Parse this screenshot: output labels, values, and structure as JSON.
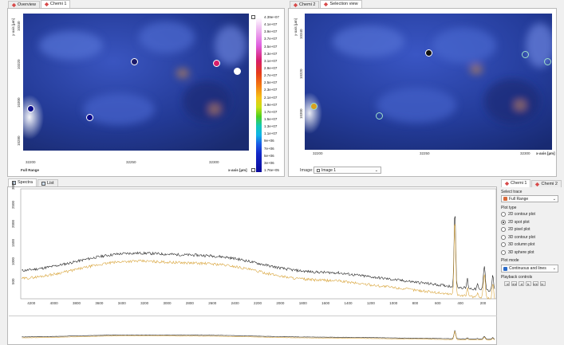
{
  "top_left": {
    "tabs": [
      {
        "label": "Overview",
        "active": false
      },
      {
        "label": "Chemi 1",
        "active": true
      }
    ],
    "y_axis_label": "y-axis [µm]",
    "x_axis_label": "x-axis [µm]",
    "x_ticks": [
      "32200",
      "32250",
      "32300"
    ],
    "y_ticks": [
      "10340",
      "10320",
      "10300",
      "10280"
    ],
    "trace_label": "Full Range",
    "colorbar_ticks": [
      "4.39e+07",
      "4.1e+07",
      "3.9e+07",
      "3.7e+07",
      "3.5e+07",
      "3.3e+07",
      "3.1e+07",
      "2.9e+07",
      "2.7e+07",
      "2.5e+07",
      "2.3e+07",
      "2.1e+07",
      "1.9e+07",
      "1.7e+07",
      "1.5e+07",
      "1.3e+07",
      "1.1e+07",
      "9e+06",
      "7e+06",
      "5e+06",
      "3e+06",
      "1.76e+05"
    ]
  },
  "top_right": {
    "tabs": [
      {
        "label": "Chemi 2",
        "active": false
      },
      {
        "label": "Selection view",
        "active": true
      }
    ],
    "y_axis_label": "y-axis [µm]",
    "x_axis_label": "x-axis [µm]",
    "x_ticks": [
      "32200",
      "32250",
      "32300"
    ],
    "y_ticks": [
      "10340",
      "10320",
      "10300"
    ],
    "image_label": "Image:",
    "image_value": "Image 1"
  },
  "bottom": {
    "tabs": [
      {
        "label": "Spectra",
        "active": true
      },
      {
        "label": "List",
        "active": false
      }
    ],
    "y_ticks": [
      "3000",
      "2500",
      "2000",
      "1500",
      "1000",
      "500"
    ],
    "x_ticks": [
      "4200",
      "4000",
      "3800",
      "3600",
      "3400",
      "3200",
      "3000",
      "2800",
      "2600",
      "2400",
      "2200",
      "2000",
      "1800",
      "1600",
      "1400",
      "1200",
      "1000",
      "800",
      "600",
      "400",
      "200"
    ]
  },
  "side_panel": {
    "tabs": [
      {
        "label": "Chemi 1",
        "active": true
      },
      {
        "label": "Chemi 2",
        "active": false
      }
    ],
    "select_trace_label": "Select trace",
    "trace_value": "Full Range",
    "plot_type_label": "Plot type",
    "plot_types": [
      {
        "label": "2D contour plot",
        "selected": false
      },
      {
        "label": "2D spot plot",
        "selected": true
      },
      {
        "label": "2D pixel plot",
        "selected": false
      },
      {
        "label": "3D contour plot",
        "selected": false
      },
      {
        "label": "3D column plot",
        "selected": false
      },
      {
        "label": "3D sphere plot",
        "selected": false
      }
    ],
    "plot_mode_label": "Plot mode",
    "plot_mode_value": "Continuous and lines",
    "playback_label": "Playback controls",
    "playback_buttons": [
      "|◀",
      "◀◀",
      "◀",
      "▶",
      "▶▶",
      "▶|"
    ]
  },
  "colors": {
    "spectrum_dark": "#222222",
    "spectrum_orange": "#d9a53c",
    "micro_base": "#2a3f9e"
  }
}
